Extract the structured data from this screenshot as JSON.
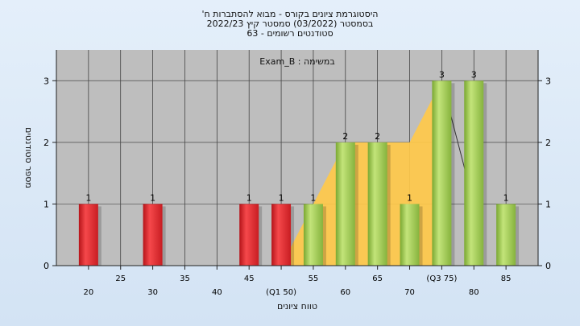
{
  "chart_data": {
    "type": "bar",
    "title_lines": [
      "היסטוגרמת ציונים בקורס - מבוא להסתברות ח'",
      "בסמסטר  (03/2022)  סמסטר קיץ 2022/23",
      "סטודנטים רשומים - 63"
    ],
    "subtitle": "במשימה : Exam_B",
    "ylabel": "מספר סטודנטים",
    "xlabel": "טווח ציונים",
    "ylim": [
      0,
      3.5
    ],
    "yticks": [
      0,
      1,
      2,
      3
    ],
    "x_ticks": [
      {
        "x": 20,
        "label": "20",
        "row": 2
      },
      {
        "x": 25,
        "label": "25",
        "row": 1
      },
      {
        "x": 30,
        "label": "30",
        "row": 2
      },
      {
        "x": 35,
        "label": "35",
        "row": 1
      },
      {
        "x": 40,
        "label": "40",
        "row": 2
      },
      {
        "x": 45,
        "label": "45",
        "row": 1
      },
      {
        "x": 50,
        "label": "(Q1 50)",
        "row": 2
      },
      {
        "x": 55,
        "label": "55",
        "row": 1
      },
      {
        "x": 60,
        "label": "60",
        "row": 2
      },
      {
        "x": 65,
        "label": "65",
        "row": 1
      },
      {
        "x": 70,
        "label": "70",
        "row": 2
      },
      {
        "x": 75,
        "label": "(Q3 75)",
        "row": 1
      },
      {
        "x": 80,
        "label": "80",
        "row": 2
      },
      {
        "x": 85,
        "label": "85",
        "row": 1
      }
    ],
    "bars": [
      {
        "x": 20,
        "value": 1,
        "group": "below"
      },
      {
        "x": 30,
        "value": 1,
        "group": "below"
      },
      {
        "x": 45,
        "value": 1,
        "group": "below"
      },
      {
        "x": 50,
        "value": 1,
        "group": "below"
      },
      {
        "x": 55,
        "value": 1,
        "group": "pass"
      },
      {
        "x": 60,
        "value": 2,
        "group": "pass"
      },
      {
        "x": 65,
        "value": 2,
        "group": "pass"
      },
      {
        "x": 70,
        "value": 1,
        "group": "pass"
      },
      {
        "x": 75,
        "value": 3,
        "group": "pass"
      },
      {
        "x": 80,
        "value": 3,
        "group": "pass"
      },
      {
        "x": 85,
        "value": 1,
        "group": "pass"
      }
    ],
    "quartile_area": [
      {
        "x": 45,
        "value": 0
      },
      {
        "x": 50,
        "value": 0
      },
      {
        "x": 55,
        "value": 1
      },
      {
        "x": 60,
        "value": 2
      },
      {
        "x": 65,
        "value": 2
      },
      {
        "x": 70,
        "value": 2
      },
      {
        "x": 75,
        "value": 3
      }
    ],
    "trend_line": [
      {
        "x": 75,
        "value": 3
      },
      {
        "x": 80,
        "value": 1
      }
    ],
    "colors": {
      "below": "#e8272b",
      "pass": "#9ccc4c",
      "area": "#ffc94a",
      "plot_bg": "#bebebe",
      "grid": "#333333"
    },
    "grid": true
  }
}
